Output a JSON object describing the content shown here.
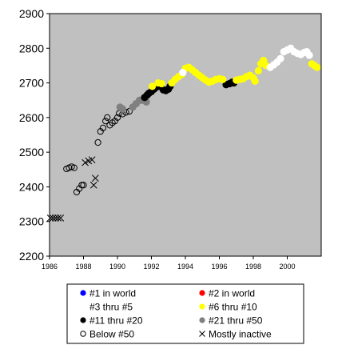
{
  "chart_data": {
    "type": "scatter",
    "xlim": [
      1986,
      2002
    ],
    "ylim": [
      2200,
      2900
    ],
    "x_ticks": [
      "1986",
      "1988",
      "1990",
      "1992",
      "1994",
      "1996",
      "1998",
      "2000"
    ],
    "y_ticks": [
      "2200",
      "2300",
      "2400",
      "2500",
      "2600",
      "2700",
      "2800",
      "2900"
    ],
    "grid": false,
    "plot_background": "#c0c0c0",
    "legend_position": "bottom",
    "legend": [
      {
        "label": "#1 in world",
        "marker": "dot",
        "color": "#0000ff"
      },
      {
        "label": "#2 in world",
        "marker": "dot",
        "color": "#ff0000"
      },
      {
        "label": "#3 thru #5",
        "marker": "dot",
        "color": "#ffffff"
      },
      {
        "label": "#6 thru #10",
        "marker": "dot",
        "color": "#ffff00"
      },
      {
        "label": "#11 thru #20",
        "marker": "dot",
        "color": "#000000"
      },
      {
        "label": "#21 thru #50",
        "marker": "dot",
        "color": "#808080"
      },
      {
        "label": "Below #50",
        "marker": "circle",
        "color": "#000000"
      },
      {
        "label": "Mostly inactive",
        "marker": "x",
        "color": "#000000"
      }
    ],
    "series": [
      {
        "name": "#1 in world",
        "marker": "dot",
        "color": "#0000ff",
        "points": []
      },
      {
        "name": "#2 in world",
        "marker": "dot",
        "color": "#ff0000",
        "points": []
      },
      {
        "name": "Mostly inactive",
        "marker": "x",
        "color": "#000000",
        "points": [
          [
            1986.05,
            2310
          ],
          [
            1986.2,
            2310
          ],
          [
            1986.35,
            2310
          ],
          [
            1986.5,
            2310
          ],
          [
            1986.65,
            2310
          ],
          [
            1988.1,
            2470
          ],
          [
            1988.3,
            2475
          ],
          [
            1988.5,
            2478
          ],
          [
            1988.6,
            2405
          ],
          [
            1988.7,
            2425
          ]
        ]
      },
      {
        "name": "Below #50",
        "marker": "circle",
        "color": "#000000",
        "points": [
          [
            1987.0,
            2452
          ],
          [
            1987.15,
            2455
          ],
          [
            1987.3,
            2458
          ],
          [
            1987.45,
            2455
          ],
          [
            1987.6,
            2385
          ],
          [
            1987.75,
            2395
          ],
          [
            1987.9,
            2405
          ],
          [
            1988.0,
            2405
          ],
          [
            1988.85,
            2528
          ],
          [
            1989.0,
            2560
          ],
          [
            1989.15,
            2570
          ],
          [
            1989.3,
            2590
          ],
          [
            1989.4,
            2600
          ],
          [
            1989.55,
            2578
          ],
          [
            1989.7,
            2585
          ],
          [
            1989.85,
            2590
          ],
          [
            1990.0,
            2600
          ],
          [
            1990.1,
            2612
          ],
          [
            1990.3,
            2610
          ],
          [
            1990.5,
            2615
          ],
          [
            1990.7,
            2618
          ]
        ]
      },
      {
        "name": "#21 thru #50",
        "marker": "dot",
        "color": "#808080",
        "points": [
          [
            1990.15,
            2630
          ],
          [
            1990.3,
            2625
          ],
          [
            1990.9,
            2630
          ],
          [
            1991.1,
            2640
          ],
          [
            1991.3,
            2650
          ],
          [
            1991.45,
            2650
          ],
          [
            1991.6,
            2655
          ],
          [
            1991.7,
            2645
          ]
        ]
      },
      {
        "name": "#11 thru #20",
        "marker": "dot",
        "color": "#000000",
        "points": [
          [
            1991.6,
            2658
          ],
          [
            1991.75,
            2665
          ],
          [
            1991.85,
            2670
          ],
          [
            1992.0,
            2675
          ],
          [
            1992.15,
            2682
          ],
          [
            1992.3,
            2688
          ],
          [
            1992.5,
            2690
          ],
          [
            1992.7,
            2680
          ],
          [
            1992.85,
            2678
          ],
          [
            1993.0,
            2682
          ],
          [
            1993.1,
            2690
          ],
          [
            1996.4,
            2695
          ],
          [
            1996.6,
            2698
          ],
          [
            1996.75,
            2702
          ],
          [
            1996.85,
            2700
          ]
        ]
      },
      {
        "name": "#6 thru #10",
        "marker": "dot",
        "color": "#ffff00",
        "points": [
          [
            1992.05,
            2690
          ],
          [
            1992.4,
            2700
          ],
          [
            1992.6,
            2698
          ],
          [
            1993.2,
            2700
          ],
          [
            1993.4,
            2710
          ],
          [
            1993.6,
            2718
          ],
          [
            1993.8,
            2725
          ],
          [
            1994.0,
            2742
          ],
          [
            1994.2,
            2745
          ],
          [
            1994.4,
            2738
          ],
          [
            1994.6,
            2730
          ],
          [
            1994.8,
            2722
          ],
          [
            1995.0,
            2715
          ],
          [
            1995.2,
            2708
          ],
          [
            1995.4,
            2702
          ],
          [
            1995.6,
            2705
          ],
          [
            1995.8,
            2710
          ],
          [
            1996.0,
            2712
          ],
          [
            1996.2,
            2710
          ],
          [
            1997.0,
            2708
          ],
          [
            1997.2,
            2710
          ],
          [
            1997.4,
            2712
          ],
          [
            1997.6,
            2718
          ],
          [
            1997.8,
            2722
          ],
          [
            1998.0,
            2715
          ],
          [
            1998.1,
            2705
          ],
          [
            1998.3,
            2735
          ],
          [
            1998.45,
            2755
          ],
          [
            1998.6,
            2765
          ],
          [
            1998.75,
            2750
          ],
          [
            2001.45,
            2755
          ],
          [
            2001.6,
            2750
          ],
          [
            2001.75,
            2745
          ]
        ]
      },
      {
        "name": "#3 thru #5",
        "marker": "dot",
        "color": "#ffffff",
        "points": [
          [
            1993.85,
            2730
          ],
          [
            1999.0,
            2745
          ],
          [
            1999.2,
            2752
          ],
          [
            1999.4,
            2760
          ],
          [
            1999.6,
            2770
          ],
          [
            1999.8,
            2790
          ],
          [
            2000.0,
            2795
          ],
          [
            2000.2,
            2800
          ],
          [
            2000.4,
            2790
          ],
          [
            2000.6,
            2785
          ],
          [
            2000.8,
            2782
          ],
          [
            2001.0,
            2788
          ],
          [
            2001.15,
            2790
          ],
          [
            2001.3,
            2780
          ]
        ]
      }
    ]
  }
}
